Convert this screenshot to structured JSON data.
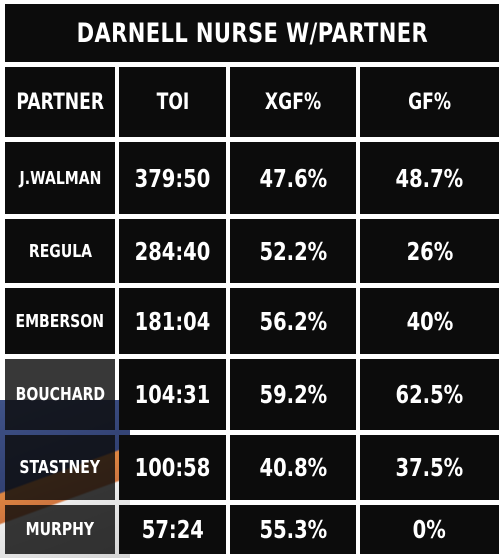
{
  "title": "DARNELL NURSE W/PARTNER",
  "headers": [
    "PARTNER",
    "TOI",
    "XGF%",
    "GF%"
  ],
  "rows": [
    {
      "partner": "J.WALMAN",
      "toi": "379:50",
      "xgf": "47.6%",
      "gf": "48.7%"
    },
    {
      "partner": "REGULA",
      "toi": "284:40",
      "xgf": "52.2%",
      "gf": "26%"
    },
    {
      "partner": "EMBERSON",
      "toi": "181:04",
      "xgf": "56.2%",
      "gf": "40%"
    },
    {
      "partner": "BOUCHARD",
      "toi": "104:31",
      "xgf": "59.2%",
      "gf": "62.5%"
    },
    {
      "partner": "STASTNEY",
      "toi": "100:58",
      "xgf": "40.8%",
      "gf": "37.5%"
    },
    {
      "partner": "MURPHY",
      "toi": "57:24",
      "xgf": "55.3%",
      "gf": "0%"
    }
  ],
  "colors": {
    "cell": "#0c0c0c",
    "text": "#ffffff",
    "gap": "#ffffff"
  }
}
